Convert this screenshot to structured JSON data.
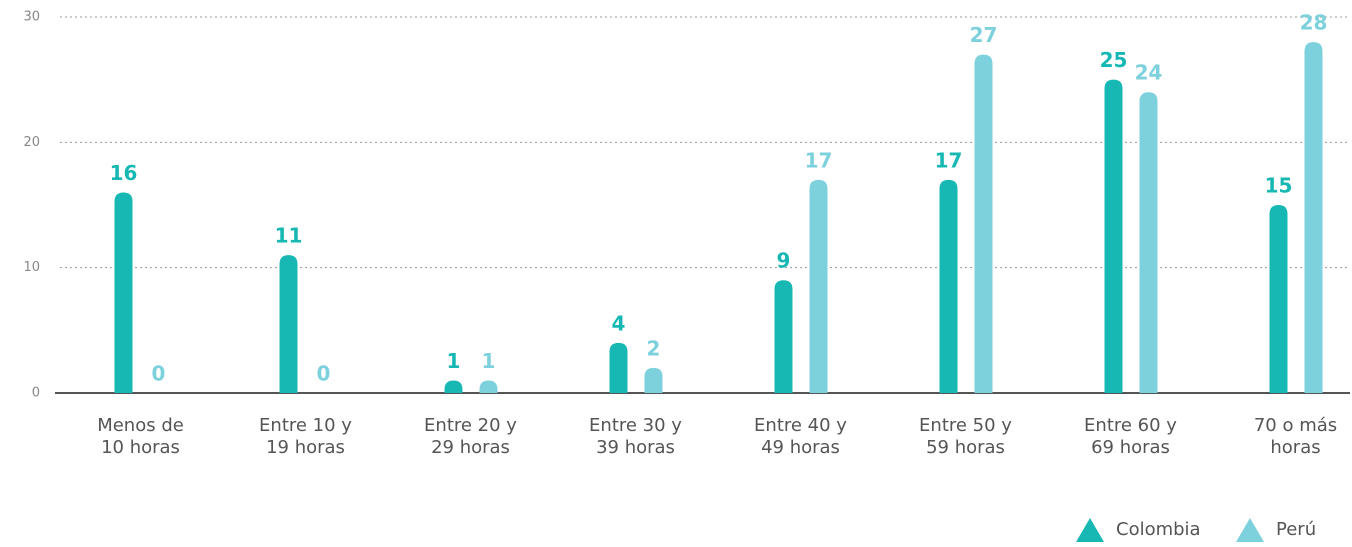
{
  "chart_data": {
    "type": "bar",
    "categories": [
      "Menos de 10 horas",
      "Entre 10 y 19 horas",
      "Entre 20 y 29 horas",
      "Entre 30 y 39 horas",
      "Entre 40 y 49 horas",
      "Entre 50 y 59 horas",
      "Entre 60 y 69 horas",
      "70 o más horas"
    ],
    "series": [
      {
        "name": "Colombia",
        "color": "#17b8b3",
        "values": [
          16,
          11,
          1,
          4,
          9,
          17,
          25,
          15
        ]
      },
      {
        "name": "Perú",
        "color": "#7dd1dd",
        "values": [
          0,
          0,
          1,
          2,
          17,
          27,
          24,
          28
        ]
      }
    ],
    "ylim": [
      0,
      30
    ],
    "yticks": [
      0,
      10,
      20,
      30
    ],
    "grid": true,
    "legend": "bottom-right"
  }
}
